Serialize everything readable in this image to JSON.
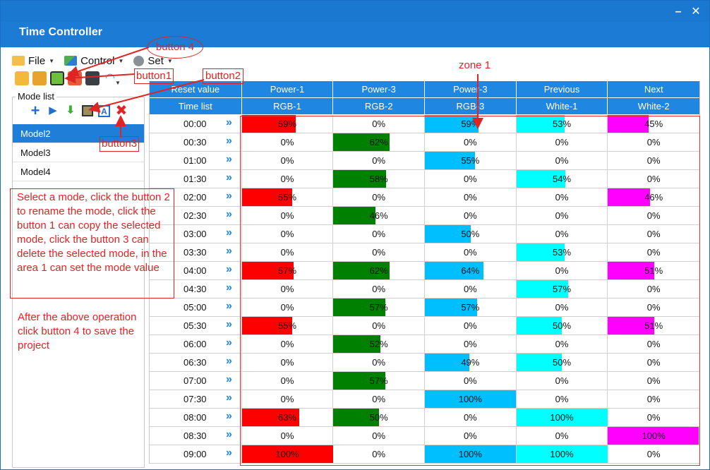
{
  "window": {
    "title": "Time Controller",
    "minimize": "–",
    "close": "✕"
  },
  "menu": [
    {
      "label": "File",
      "icon": "folder-icon"
    },
    {
      "label": "Control",
      "icon": "control-icon"
    },
    {
      "label": "Set",
      "icon": "gear-icon"
    }
  ],
  "toolbar": [
    "new-project-icon",
    "open-project-icon",
    "save-project-icon",
    "calendar-icon",
    "device-icon",
    "wifi-icon"
  ],
  "mode_list": {
    "legend": "Mode list",
    "items": [
      "Model2",
      "Model3",
      "Model4"
    ],
    "selected": "Model2"
  },
  "table": {
    "header_top": [
      "Reset value",
      "Power-1",
      "Power-3",
      "Power-3",
      "Previous",
      "Next"
    ],
    "header_bottom": [
      "Time list",
      "RGB-1",
      "RGB-2",
      "RGB-3",
      "White-1",
      "White-2"
    ],
    "channel_colors": [
      "#ff0000",
      "#008000",
      "#00bfff",
      "#00ffff",
      "#ff00ff"
    ],
    "rows": [
      {
        "time": "00:00",
        "values": [
          59,
          0,
          59,
          53,
          45
        ]
      },
      {
        "time": "00:30",
        "values": [
          0,
          62,
          0,
          0,
          0
        ]
      },
      {
        "time": "01:00",
        "values": [
          0,
          0,
          55,
          0,
          0
        ]
      },
      {
        "time": "01:30",
        "values": [
          0,
          58,
          0,
          54,
          0
        ]
      },
      {
        "time": "02:00",
        "values": [
          55,
          0,
          0,
          0,
          46
        ]
      },
      {
        "time": "02:30",
        "values": [
          0,
          46,
          0,
          0,
          0
        ]
      },
      {
        "time": "03:00",
        "values": [
          0,
          0,
          50,
          0,
          0
        ]
      },
      {
        "time": "03:30",
        "values": [
          0,
          0,
          0,
          53,
          0
        ]
      },
      {
        "time": "04:00",
        "values": [
          57,
          62,
          64,
          0,
          51
        ]
      },
      {
        "time": "04:30",
        "values": [
          0,
          0,
          0,
          57,
          0
        ]
      },
      {
        "time": "05:00",
        "values": [
          0,
          57,
          57,
          0,
          0
        ]
      },
      {
        "time": "05:30",
        "values": [
          55,
          0,
          0,
          50,
          51
        ]
      },
      {
        "time": "06:00",
        "values": [
          0,
          52,
          0,
          0,
          0
        ]
      },
      {
        "time": "06:30",
        "values": [
          0,
          0,
          49,
          50,
          0
        ]
      },
      {
        "time": "07:00",
        "values": [
          0,
          57,
          0,
          0,
          0
        ]
      },
      {
        "time": "07:30",
        "values": [
          0,
          0,
          100,
          0,
          0
        ]
      },
      {
        "time": "08:00",
        "values": [
          63,
          50,
          0,
          100,
          0
        ]
      },
      {
        "time": "08:30",
        "values": [
          0,
          0,
          0,
          0,
          100
        ]
      },
      {
        "time": "09:00",
        "values": [
          100,
          0,
          100,
          100,
          0
        ]
      }
    ]
  },
  "annotations": {
    "button1": "button1",
    "button2": "button2",
    "button3": "button3",
    "button4": "button 4",
    "zone1": "zone 1",
    "instructions": "Select a mode, click the button 2 to rename the mode, click the button 1 can copy the selected mode, click the button 3 can delete the selected mode, in the area 1 can set the mode value",
    "save_note": "After the above operation click button 4 to save the project"
  }
}
